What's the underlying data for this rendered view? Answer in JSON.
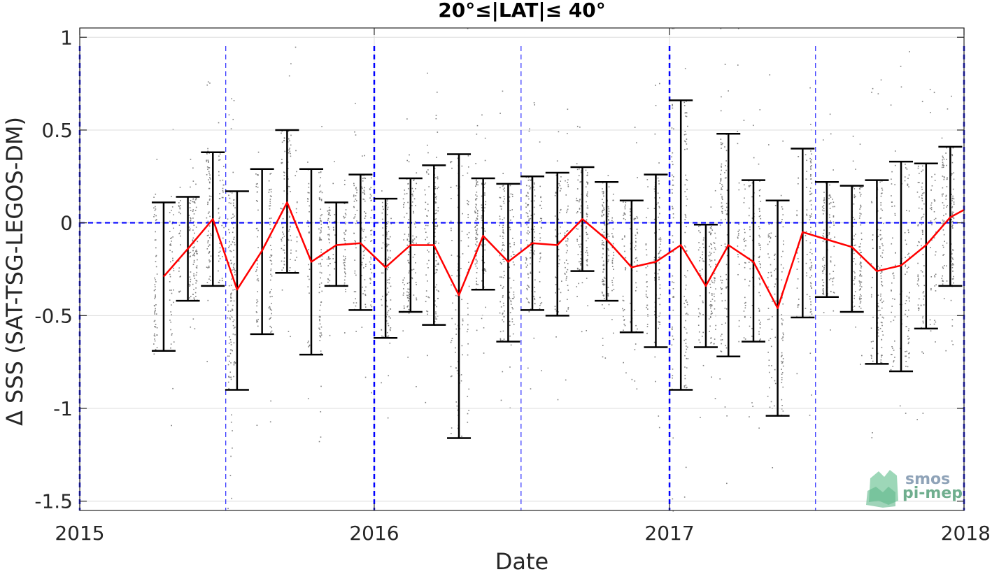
{
  "chart_data": {
    "type": "line",
    "title": "20°≤|LAT|≤ 40°",
    "xlabel": "Date",
    "ylabel": "Δ SSS (SAT-TSG-LEGOS-DM)",
    "xlim": [
      "2015-01-01",
      "2018-01-01"
    ],
    "ylim": [
      -1.55,
      1.05
    ],
    "xticks": [
      "2015",
      "2016",
      "2017",
      "2018"
    ],
    "yticks": [
      1,
      0.5,
      0,
      -0.5,
      -1,
      -1.5
    ],
    "ytick_labels": [
      "1",
      "0.5",
      "0",
      "-0.5",
      "-1",
      "-1.5"
    ],
    "grid": true,
    "colors": {
      "mean_line": "#ff0000",
      "error_bars": "#000000",
      "scatter": "#808080",
      "reference_lines": "#0000ff"
    },
    "series": [
      {
        "type": "line_with_errorbars",
        "x": [
          "2015-04-15",
          "2015-05-15",
          "2015-06-15",
          "2015-07-15",
          "2015-08-15",
          "2015-09-15",
          "2015-10-15",
          "2015-11-15",
          "2015-12-15",
          "2016-01-15",
          "2016-02-15",
          "2016-03-15",
          "2016-04-15",
          "2016-05-15",
          "2016-06-15",
          "2016-07-15",
          "2016-08-15",
          "2016-09-15",
          "2016-10-15",
          "2016-11-15",
          "2016-12-15",
          "2017-01-15",
          "2017-02-15",
          "2017-03-15",
          "2017-04-15",
          "2017-05-15",
          "2017-06-15",
          "2017-07-15",
          "2017-08-15",
          "2017-09-15",
          "2017-10-15",
          "2017-11-15",
          "2017-12-15",
          "2018-01-01"
        ],
        "y": [
          -0.29,
          -0.14,
          0.02,
          -0.36,
          -0.15,
          0.11,
          -0.21,
          -0.12,
          -0.11,
          -0.24,
          -0.12,
          -0.12,
          -0.39,
          -0.07,
          -0.21,
          -0.11,
          -0.12,
          0.02,
          -0.09,
          -0.24,
          -0.21,
          -0.12,
          -0.34,
          -0.12,
          -0.21,
          -0.46,
          -0.05,
          -0.09,
          -0.13,
          -0.26,
          -0.23,
          -0.12,
          0.03,
          0.07
        ],
        "upper": [
          0.11,
          0.14,
          0.38,
          0.17,
          0.29,
          0.5,
          0.29,
          0.11,
          0.26,
          0.13,
          0.24,
          0.31,
          0.37,
          0.24,
          0.21,
          0.25,
          0.27,
          0.3,
          0.22,
          0.12,
          0.26,
          0.66,
          -0.01,
          0.48,
          0.23,
          0.12,
          0.4,
          0.22,
          0.2,
          0.23,
          0.33,
          0.32,
          0.41,
          null
        ],
        "lower": [
          -0.69,
          -0.42,
          -0.34,
          -0.9,
          -0.6,
          -0.27,
          -0.71,
          -0.34,
          -0.47,
          -0.62,
          -0.48,
          -0.55,
          -1.16,
          -0.36,
          -0.64,
          -0.47,
          -0.5,
          -0.26,
          -0.42,
          -0.59,
          -0.67,
          -0.9,
          -0.67,
          -0.72,
          -0.64,
          -1.04,
          -0.51,
          -0.4,
          -0.48,
          -0.76,
          -0.8,
          -0.57,
          -0.34,
          null
        ]
      }
    ],
    "reference_lines": {
      "horizontal_y": 0,
      "vertical_year": [
        "2015-01-01",
        "2016-01-01",
        "2017-01-01",
        "2018-01-01"
      ],
      "vertical_halfyear": [
        "2015-07-01",
        "2016-07-01",
        "2017-07-01"
      ]
    }
  },
  "logo": {
    "line1": "smos",
    "line2": "pi-mep"
  }
}
